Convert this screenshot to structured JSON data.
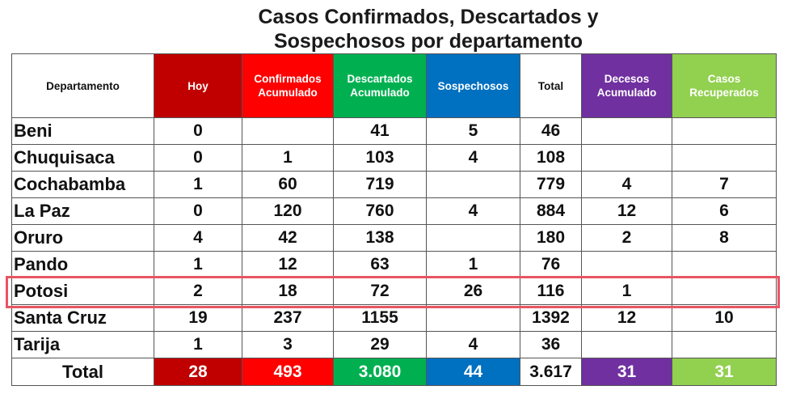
{
  "title_line1": "Casos Confirmados, Descartados y",
  "title_line2": "Sospechosos por departamento",
  "colors": {
    "hoy": "#c00000",
    "confirmados": "#ff0000",
    "descartados": "#00b050",
    "sospechosos": "#0070c0",
    "decesos": "#7030a0",
    "recuperados": "#92d050",
    "highlight": "#e85563"
  },
  "columns": [
    {
      "key": "departamento",
      "label": "Departamento",
      "color": "#ffffff"
    },
    {
      "key": "hoy",
      "label": "Hoy",
      "color": "#c00000"
    },
    {
      "key": "confirmados",
      "label": "Confirmados Acumulado",
      "color": "#ff0000"
    },
    {
      "key": "descartados",
      "label": "Descartados Acumulado",
      "color": "#00b050"
    },
    {
      "key": "sospechosos",
      "label": "Sospechosos",
      "color": "#0070c0"
    },
    {
      "key": "total",
      "label": "Total",
      "color": "#ffffff"
    },
    {
      "key": "decesos",
      "label": "Decesos Acumulado",
      "color": "#7030a0"
    },
    {
      "key": "recuperados",
      "label": "Casos Recuperados",
      "color": "#92d050"
    }
  ],
  "chart_data": {
    "type": "table",
    "title": "Casos Confirmados, Descartados y Sospechosos por departamento",
    "headers": [
      "Departamento",
      "Hoy",
      "Confirmados Acumulado",
      "Descartados Acumulado",
      "Sospechosos",
      "Total",
      "Decesos Acumulado",
      "Casos Recuperados"
    ],
    "rows": [
      [
        "Beni",
        "0",
        "",
        "41",
        "5",
        "46",
        "",
        ""
      ],
      [
        "Chuquisaca",
        "0",
        "1",
        "103",
        "4",
        "108",
        "",
        ""
      ],
      [
        "Cochabamba",
        "1",
        "60",
        "719",
        "",
        "779",
        "4",
        "7"
      ],
      [
        "La Paz",
        "0",
        "120",
        "760",
        "4",
        "884",
        "12",
        "6"
      ],
      [
        "Oruro",
        "4",
        "42",
        "138",
        "",
        "180",
        "2",
        "8"
      ],
      [
        "Pando",
        "1",
        "12",
        "63",
        "1",
        "76",
        "",
        ""
      ],
      [
        "Potosi",
        "2",
        "18",
        "72",
        "26",
        "116",
        "1",
        ""
      ],
      [
        "Santa Cruz",
        "19",
        "237",
        "1155",
        "",
        "1392",
        "12",
        "10"
      ],
      [
        "Tarija",
        "1",
        "3",
        "29",
        "4",
        "36",
        "",
        ""
      ]
    ],
    "totals": [
      "Total",
      "28",
      "493",
      "3.080",
      "44",
      "3.617",
      "31",
      "31"
    ],
    "highlighted_row": "Potosi"
  }
}
